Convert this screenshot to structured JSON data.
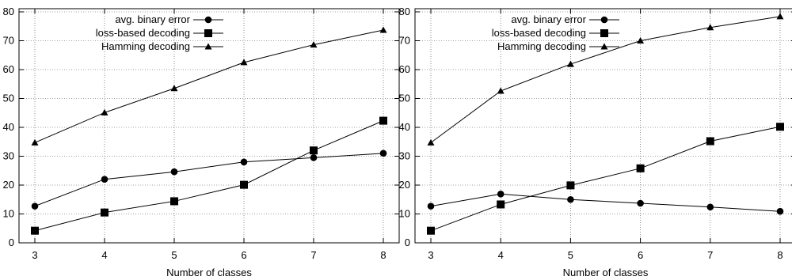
{
  "chart_data": [
    {
      "type": "line",
      "x": [
        3,
        4,
        5,
        6,
        7,
        8
      ],
      "xlim": [
        3,
        8
      ],
      "ylim": [
        0,
        80
      ],
      "yticks": [
        0,
        10,
        20,
        30,
        40,
        50,
        60,
        70,
        80
      ],
      "xticks": [
        3,
        4,
        5,
        6,
        7,
        8
      ],
      "xlabel": "Number of classes",
      "ylabel": "",
      "grid": true,
      "legend_position": "top-left",
      "series": [
        {
          "name": "avg. binary error",
          "marker": "circle",
          "values": [
            12.7,
            22.0,
            24.6,
            28.0,
            29.5,
            31.0
          ]
        },
        {
          "name": "loss-based decoding",
          "marker": "square",
          "values": [
            4.2,
            10.5,
            14.4,
            20.1,
            32.0,
            42.3
          ]
        },
        {
          "name": "Hamming decoding",
          "marker": "triangle",
          "values": [
            34.7,
            45.1,
            53.5,
            62.5,
            68.6,
            73.7
          ]
        }
      ]
    },
    {
      "type": "line",
      "x": [
        3,
        4,
        5,
        6,
        7,
        8
      ],
      "xlim": [
        3,
        8
      ],
      "ylim": [
        0,
        80
      ],
      "yticks": [
        0,
        10,
        20,
        30,
        40,
        50,
        60,
        70,
        80
      ],
      "xticks": [
        3,
        4,
        5,
        6,
        7,
        8
      ],
      "xlabel": "Number of classes",
      "ylabel": "",
      "grid": true,
      "legend_position": "top-left",
      "series": [
        {
          "name": "avg. binary error",
          "marker": "circle",
          "values": [
            12.7,
            16.9,
            15.0,
            13.7,
            12.4,
            10.9
          ]
        },
        {
          "name": "loss-based decoding",
          "marker": "square",
          "values": [
            4.2,
            13.3,
            19.9,
            25.8,
            35.2,
            40.2
          ]
        },
        {
          "name": "Hamming decoding",
          "marker": "triangle",
          "values": [
            34.7,
            52.6,
            61.9,
            70.0,
            74.6,
            78.4
          ]
        }
      ]
    }
  ]
}
